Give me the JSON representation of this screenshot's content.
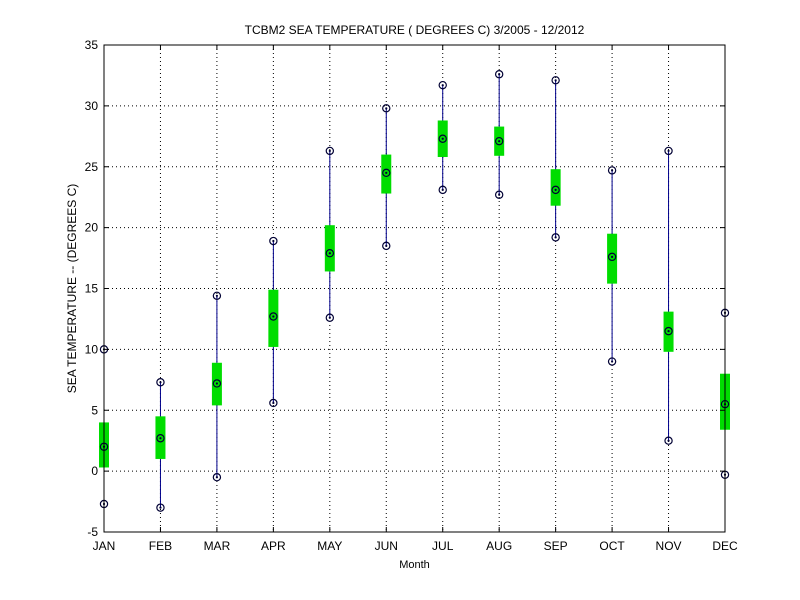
{
  "chart_data": {
    "type": "box",
    "title": "TCBM2  SEA TEMPERATURE ( DEGREES C) 3/2005 - 12/2012",
    "xlabel": "Month",
    "ylabel": "SEA TEMPERATURE -- (DEGREES C)",
    "ylim": [
      -5,
      35
    ],
    "yticks": [
      -5,
      0,
      5,
      10,
      15,
      20,
      25,
      30,
      35
    ],
    "grid": true,
    "categories": [
      "JAN",
      "FEB",
      "MAR",
      "APR",
      "MAY",
      "JUN",
      "JUL",
      "AUG",
      "SEP",
      "OCT",
      "NOV",
      "DEC"
    ],
    "min": [
      -2.7,
      -3.0,
      -0.5,
      5.6,
      12.6,
      18.5,
      23.1,
      22.7,
      19.2,
      9.0,
      2.5,
      -0.3
    ],
    "q1": [
      0.3,
      1.0,
      5.4,
      10.2,
      16.4,
      22.8,
      25.8,
      25.9,
      21.8,
      15.4,
      9.8,
      3.4
    ],
    "mean": [
      2.0,
      2.7,
      7.2,
      12.7,
      17.9,
      24.5,
      27.3,
      27.1,
      23.1,
      17.6,
      11.5,
      5.5
    ],
    "q3": [
      4.0,
      4.5,
      8.9,
      14.9,
      20.2,
      26.0,
      28.8,
      28.3,
      24.8,
      19.5,
      13.1,
      8.0
    ],
    "max": [
      10.0,
      7.3,
      14.4,
      18.9,
      26.3,
      29.8,
      31.7,
      32.6,
      32.1,
      24.7,
      26.3,
      13.0
    ],
    "colors": {
      "whisker": "#00008b",
      "box": "#00dd00",
      "marker": "#000033",
      "grid": "#000000"
    }
  }
}
